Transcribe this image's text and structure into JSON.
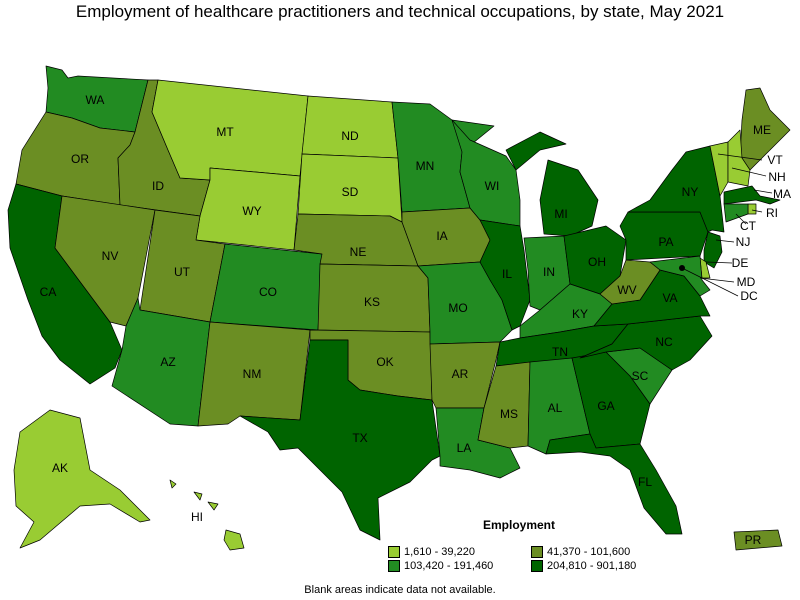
{
  "title": "Employment of healthcare practitioners and technical occupations, by state, May 2021",
  "legend": {
    "title": "Employment",
    "items": [
      {
        "label": "1,610 - 39,220",
        "color": "#99cc33"
      },
      {
        "label": "41,370 - 101,600",
        "color": "#6b8e23"
      },
      {
        "label": "103,420 - 191,460",
        "color": "#228b22"
      },
      {
        "label": "204,810 - 901,180",
        "color": "#006400"
      }
    ]
  },
  "footnote": "Blank areas indicate data not available.",
  "states": [
    {
      "abbr": "WA",
      "class": 2
    },
    {
      "abbr": "OR",
      "class": 1
    },
    {
      "abbr": "CA",
      "class": 3
    },
    {
      "abbr": "ID",
      "class": 1
    },
    {
      "abbr": "NV",
      "class": 1
    },
    {
      "abbr": "MT",
      "class": 0
    },
    {
      "abbr": "WY",
      "class": 0
    },
    {
      "abbr": "UT",
      "class": 1
    },
    {
      "abbr": "AZ",
      "class": 2
    },
    {
      "abbr": "CO",
      "class": 2
    },
    {
      "abbr": "NM",
      "class": 1
    },
    {
      "abbr": "ND",
      "class": 0
    },
    {
      "abbr": "SD",
      "class": 0
    },
    {
      "abbr": "NE",
      "class": 1
    },
    {
      "abbr": "KS",
      "class": 1
    },
    {
      "abbr": "OK",
      "class": 1
    },
    {
      "abbr": "TX",
      "class": 3
    },
    {
      "abbr": "MN",
      "class": 2
    },
    {
      "abbr": "IA",
      "class": 1
    },
    {
      "abbr": "MO",
      "class": 2
    },
    {
      "abbr": "AR",
      "class": 1
    },
    {
      "abbr": "LA",
      "class": 2
    },
    {
      "abbr": "WI",
      "class": 2
    },
    {
      "abbr": "IL",
      "class": 3
    },
    {
      "abbr": "MI",
      "class": 3
    },
    {
      "abbr": "IN",
      "class": 2
    },
    {
      "abbr": "OH",
      "class": 3
    },
    {
      "abbr": "KY",
      "class": 2
    },
    {
      "abbr": "TN",
      "class": 3
    },
    {
      "abbr": "MS",
      "class": 1
    },
    {
      "abbr": "AL",
      "class": 2
    },
    {
      "abbr": "GA",
      "class": 3
    },
    {
      "abbr": "FL",
      "class": 3
    },
    {
      "abbr": "SC",
      "class": 2
    },
    {
      "abbr": "NC",
      "class": 3
    },
    {
      "abbr": "VA",
      "class": 3
    },
    {
      "abbr": "WV",
      "class": 1
    },
    {
      "abbr": "PA",
      "class": 3
    },
    {
      "abbr": "NY",
      "class": 3
    },
    {
      "abbr": "ME",
      "class": 1
    },
    {
      "abbr": "VT",
      "class": 0
    },
    {
      "abbr": "NH",
      "class": 0
    },
    {
      "abbr": "MA",
      "class": 3
    },
    {
      "abbr": "RI",
      "class": 0
    },
    {
      "abbr": "CT",
      "class": 2
    },
    {
      "abbr": "NJ",
      "class": 3
    },
    {
      "abbr": "DE",
      "class": 0
    },
    {
      "abbr": "MD",
      "class": 2
    },
    {
      "abbr": "DC",
      "class": 0
    },
    {
      "abbr": "AK",
      "class": 0
    },
    {
      "abbr": "HI",
      "class": 0
    },
    {
      "abbr": "PR",
      "class": 1
    }
  ]
}
